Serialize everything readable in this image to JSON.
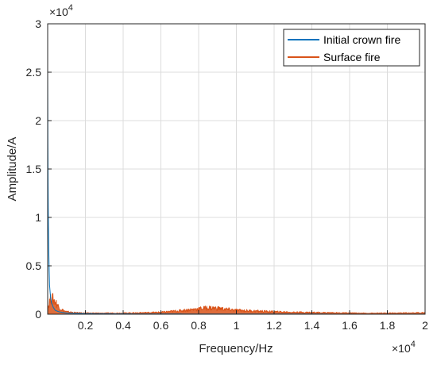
{
  "chart_data": {
    "type": "line",
    "title": "",
    "xlabel": "Frequency/Hz",
    "ylabel": "Amplitude/A",
    "x_exponent_label": "×10",
    "x_exponent_power": "4",
    "y_exponent_label": "×10",
    "y_exponent_power": "4",
    "xlim": [
      0,
      20000
    ],
    "ylim": [
      0,
      30000
    ],
    "x_ticks": [
      0.2,
      0.4,
      0.6,
      0.8,
      1.0,
      1.2,
      1.4,
      1.6,
      1.8,
      2.0
    ],
    "x_tick_labels": [
      "0.2",
      "0.4",
      "0.6",
      "0.8",
      "1",
      "1.2",
      "1.4",
      "1.6",
      "1.8",
      "2"
    ],
    "y_ticks": [
      0,
      0.5,
      1,
      1.5,
      2,
      2.5,
      3
    ],
    "y_tick_labels": [
      "0",
      "0.5",
      "1",
      "1.5",
      "2",
      "2.5",
      "3"
    ],
    "grid": true,
    "legend_position": "top-right",
    "series": [
      {
        "name": "Initial crown fire",
        "color": "#0072BD",
        "x": [
          0,
          5,
          10,
          20,
          30,
          40,
          60,
          80,
          100,
          150,
          200,
          300,
          400,
          600,
          1000,
          2000,
          5000,
          10000,
          15000,
          20000
        ],
        "y": [
          25300,
          21800,
          18000,
          14000,
          11000,
          9000,
          6500,
          4500,
          3000,
          1800,
          1200,
          700,
          400,
          250,
          120,
          60,
          30,
          20,
          15,
          10
        ]
      },
      {
        "name": "Surface fire",
        "color": "#D95319",
        "x": [
          0,
          100,
          200,
          300,
          400,
          500,
          600,
          800,
          1000,
          1500,
          2000,
          3000,
          4000,
          5000,
          6000,
          7000,
          8000,
          8500,
          9000,
          9500,
          10000,
          11000,
          12000,
          13000,
          14000,
          15000,
          16000,
          17000,
          18000,
          19000,
          20000
        ],
        "y": [
          500,
          1300,
          1700,
          1500,
          1300,
          1000,
          700,
          400,
          250,
          150,
          120,
          110,
          120,
          150,
          200,
          350,
          550,
          650,
          600,
          500,
          400,
          320,
          250,
          200,
          180,
          150,
          120,
          100,
          110,
          130,
          150
        ]
      }
    ]
  }
}
